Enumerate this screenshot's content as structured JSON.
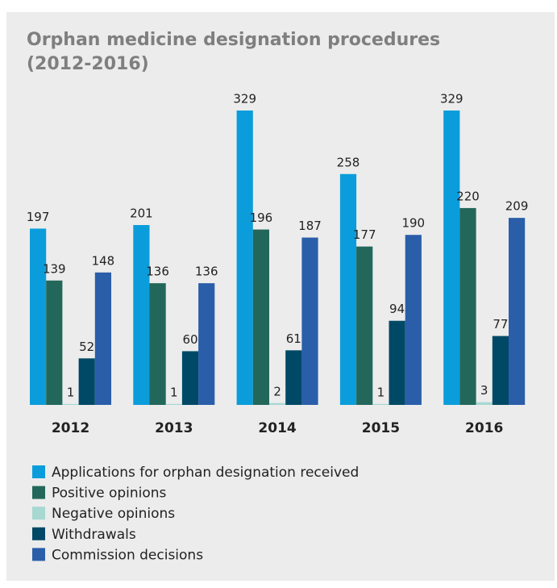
{
  "chart_data": {
    "type": "bar",
    "title": [
      "Orphan medicine designation procedures",
      "(2012-2016)"
    ],
    "categories": [
      "2012",
      "2013",
      "2014",
      "2015",
      "2016"
    ],
    "series": [
      {
        "name": "Applications for orphan designation received",
        "color": "#0b9ddb",
        "values": [
          197,
          201,
          329,
          258,
          329
        ]
      },
      {
        "name": "Positive opinions",
        "color": "#23675a",
        "values": [
          139,
          136,
          196,
          177,
          220
        ]
      },
      {
        "name": "Negative opinions",
        "color": "#a7d8d2",
        "values": [
          1,
          1,
          2,
          1,
          3
        ]
      },
      {
        "name": "Withdrawals",
        "color": "#004966",
        "values": [
          52,
          60,
          61,
          94,
          77
        ]
      },
      {
        "name": "Commission decisions",
        "color": "#2a5ea9",
        "values": [
          148,
          136,
          187,
          190,
          209
        ]
      }
    ]
  }
}
